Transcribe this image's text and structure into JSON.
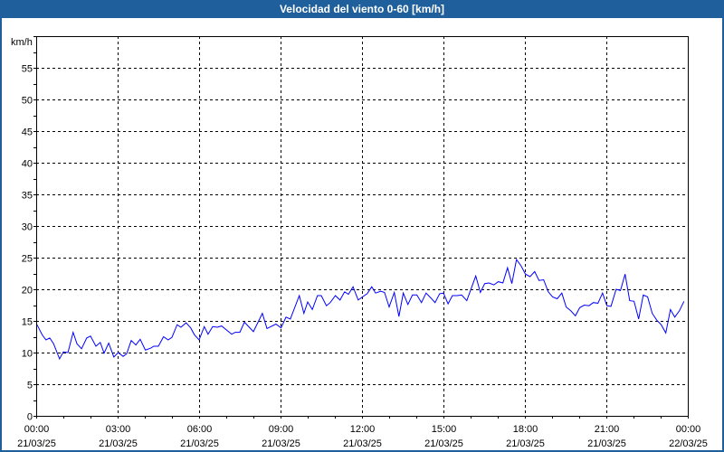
{
  "window": {
    "title": "Velocidad del viento 0-60 [km/h]"
  },
  "chart_data": {
    "type": "line",
    "title": "Velocidad del viento 0-60 [km/h]",
    "ylabel": "km/h",
    "xlabel": "",
    "ylim": [
      0,
      60
    ],
    "xlim_hours": [
      0,
      24
    ],
    "grid": true,
    "y_ticks": [
      "0",
      "5",
      "10",
      "15",
      "20",
      "25",
      "30",
      "35",
      "40",
      "45",
      "50",
      "55"
    ],
    "x_ticks": [
      {
        "time": "00:00",
        "date": "21/03/25"
      },
      {
        "time": "03:00",
        "date": "21/03/25"
      },
      {
        "time": "06:00",
        "date": "21/03/25"
      },
      {
        "time": "09:00",
        "date": "21/03/25"
      },
      {
        "time": "12:00",
        "date": "21/03/25"
      },
      {
        "time": "15:00",
        "date": "21/03/25"
      },
      {
        "time": "18:00",
        "date": "21/03/25"
      },
      {
        "time": "21:00",
        "date": "21/03/25"
      },
      {
        "time": "00:00",
        "date": "22/03/25"
      }
    ],
    "series": [
      {
        "name": "Velocidad del viento",
        "color": "#0000ff",
        "x_hours": [
          0.03,
          0.22,
          0.36,
          0.5,
          0.64,
          0.86,
          1.0,
          1.17,
          1.36,
          1.5,
          1.67,
          1.86,
          2.0,
          2.2,
          2.36,
          2.5,
          2.67,
          2.86,
          3.02,
          3.2,
          3.33,
          3.5,
          3.67,
          3.83,
          4.02,
          4.22,
          4.33,
          4.5,
          4.69,
          4.86,
          5.0,
          5.19,
          5.33,
          5.52,
          5.69,
          5.83,
          6.0,
          6.19,
          6.33,
          6.5,
          6.67,
          6.83,
          7.2,
          7.33,
          7.5,
          7.67,
          8.0,
          8.33,
          8.5,
          8.83,
          9.02,
          9.2,
          9.36,
          9.69,
          9.86,
          10.0,
          10.17,
          10.36,
          10.5,
          10.69,
          10.83,
          11.02,
          11.19,
          11.36,
          11.5,
          11.67,
          11.86,
          12.02,
          12.19,
          12.36,
          12.5,
          12.69,
          12.83,
          13.0,
          13.19,
          13.36,
          13.52,
          13.69,
          13.86,
          14.02,
          14.19,
          14.36,
          14.52,
          14.69,
          14.86,
          15.0,
          15.17,
          15.33,
          15.5,
          15.67,
          15.86,
          16.02,
          16.19,
          16.36,
          16.52,
          16.67,
          16.86,
          17.02,
          17.19,
          17.36,
          17.52,
          17.69,
          17.86,
          18.02,
          18.19,
          18.36,
          18.52,
          18.69,
          18.86,
          19.02,
          19.19,
          19.36,
          19.52,
          19.69,
          19.86,
          20.02,
          20.19,
          20.36,
          20.52,
          20.69,
          20.86,
          21.02,
          21.17,
          21.36,
          21.52,
          21.69,
          21.86,
          22.02,
          22.19,
          22.36,
          22.52,
          22.69,
          22.86,
          23.02,
          23.19,
          23.36,
          23.52,
          23.69,
          23.86
        ],
        "values": [
          14.4,
          12.8,
          12.0,
          12.3,
          11.4,
          9.0,
          10.1,
          10.0,
          13.2,
          11.4,
          10.6,
          12.3,
          12.6,
          11.0,
          11.6,
          9.9,
          11.5,
          9.3,
          10.0,
          9.4,
          9.8,
          11.9,
          11.2,
          12.1,
          10.4,
          10.7,
          11.0,
          11.0,
          12.5,
          12.0,
          12.4,
          14.4,
          14.0,
          14.7,
          13.9,
          12.8,
          12.0,
          14.1,
          12.9,
          14.1,
          14.0,
          14.2,
          12.9,
          13.2,
          13.2,
          14.8,
          13.3,
          16.2,
          13.8,
          14.5,
          13.9,
          15.6,
          15.3,
          19.0,
          16.2,
          18.0,
          16.8,
          19.0,
          19.0,
          17.4,
          17.9,
          19.0,
          18.3,
          19.6,
          19.2,
          20.4,
          18.3,
          18.8,
          19.3,
          20.4,
          19.4,
          19.7,
          19.5,
          17.2,
          19.5,
          15.7,
          19.4,
          17.6,
          19.1,
          19.1,
          17.9,
          19.4,
          18.7,
          17.9,
          19.3,
          19.4,
          17.7,
          19.0,
          19.0,
          19.1,
          18.2,
          20.1,
          22.1,
          19.5,
          20.9,
          21.0,
          20.7,
          21.2,
          21.0,
          23.4,
          20.9,
          24.7,
          23.7,
          22.4,
          22.0,
          22.8,
          21.4,
          21.5,
          19.6,
          18.8,
          18.5,
          19.4,
          17.2,
          16.6,
          15.8,
          17.1,
          17.5,
          17.4,
          17.9,
          17.8,
          19.4,
          17.4,
          17.3,
          20.0,
          19.8,
          22.4,
          18.2,
          18.1,
          15.3,
          19.1,
          18.8,
          16.2,
          15.1,
          14.4,
          13.1,
          16.8,
          15.6,
          16.6,
          18.1
        ]
      }
    ]
  }
}
